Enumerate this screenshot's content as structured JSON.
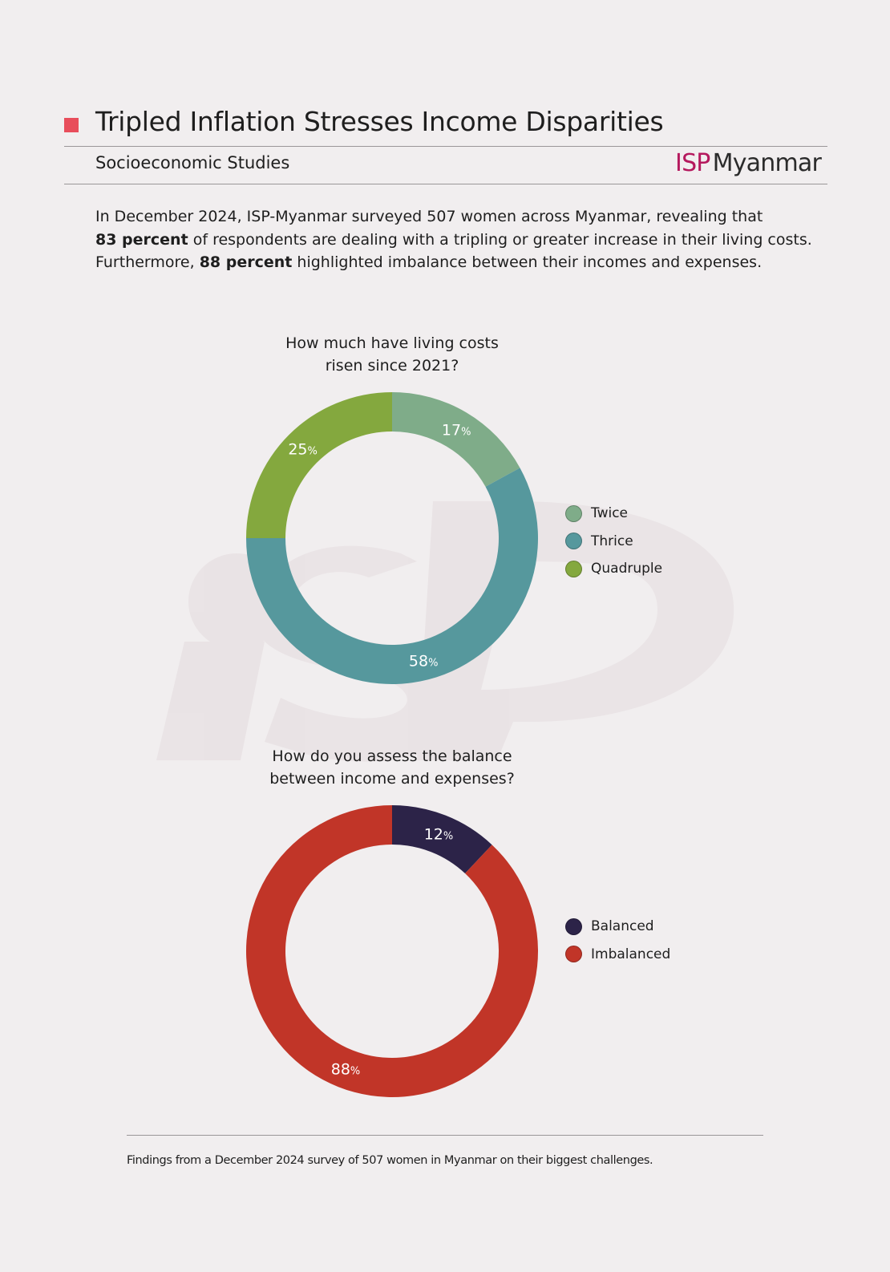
{
  "header": {
    "title": "Tripled Inflation Stresses Income Disparities",
    "subtitle": "Socioeconomic Studies",
    "brand_prefix": "ISP",
    "brand_name": "Myanmar",
    "marker_color": "#e84d5b",
    "brand_color": "#b5195e"
  },
  "intro": {
    "line1": "In December 2024, ISP-Myanmar surveyed 507 women across Myanmar, revealing that",
    "line2_bold": "83 percent",
    "line2_rest": " of respondents are dealing with a tripling or greater increase in their living costs.",
    "line3_start": "Furthermore, ",
    "line3_bold": "88 percent",
    "line3_rest": " highlighted imbalance between their incomes and expenses."
  },
  "watermark": {
    "text": "ISP"
  },
  "chart_data": [
    {
      "type": "pie",
      "style": "donut",
      "title": "How much have living costs risen since 2021?",
      "title_lines": [
        "How much have living costs",
        "risen since 2021?"
      ],
      "categories": [
        "Twice",
        "Thrice",
        "Quadruple"
      ],
      "values": [
        17,
        58,
        25
      ],
      "value_suffix": "%",
      "colors": [
        "#7fac89",
        "#56989d",
        "#84a83e"
      ],
      "legend_position": "right"
    },
    {
      "type": "pie",
      "style": "donut",
      "title": "How do you assess the balance between income and expenses?",
      "title_lines": [
        "How do you assess the balance",
        "between income and expenses?"
      ],
      "categories": [
        "Balanced",
        "Imbalanced"
      ],
      "values": [
        12,
        88
      ],
      "value_suffix": "%",
      "colors": [
        "#2c2348",
        "#c13528"
      ],
      "legend_position": "right"
    }
  ],
  "footer": {
    "note": "Findings from a December 2024 survey of 507 women in Myanmar on their biggest challenges."
  }
}
